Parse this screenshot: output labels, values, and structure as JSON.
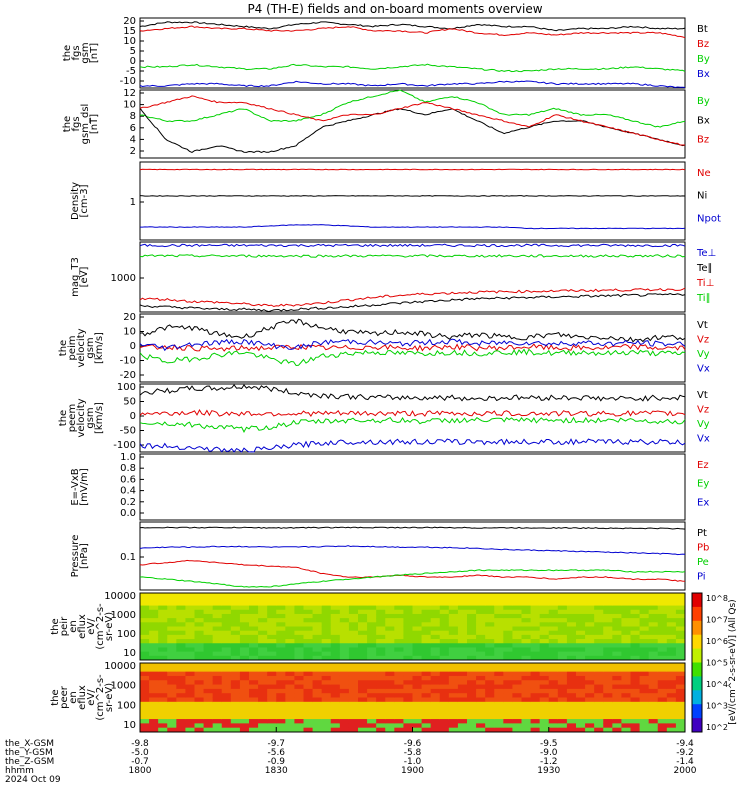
{
  "title": "P4 (TH-E) fields and on-board moments overview",
  "colors": {
    "black": "#000000",
    "red": "#e00000",
    "green": "#00d000",
    "blue": "#0000d0"
  },
  "chart_data": [
    {
      "type": "line",
      "id": "fgs",
      "ylabel": [
        "the",
        "fgs",
        "gsm",
        "[nT]"
      ],
      "yticks": [
        "20",
        "15",
        "10",
        "5",
        "0",
        "-5",
        "-10"
      ],
      "ylim": [
        -11,
        22
      ],
      "series": [
        {
          "name": "Bt",
          "color": "black",
          "values": [
            18,
            20,
            20,
            19,
            18,
            17,
            19,
            20,
            19,
            18,
            19,
            18,
            17,
            19,
            18,
            18,
            16,
            17,
            17,
            18,
            17,
            17
          ]
        },
        {
          "name": "Bz",
          "color": "red",
          "values": [
            16,
            17,
            18,
            17,
            17,
            16,
            16,
            17,
            18,
            16,
            16,
            15,
            17,
            15,
            14,
            15,
            14,
            15,
            15,
            15,
            15,
            13
          ]
        },
        {
          "name": "By",
          "color": "green",
          "values": [
            -1,
            -1,
            0,
            -1,
            -2,
            -2,
            0,
            -1,
            -1,
            -2,
            -1,
            0,
            -1,
            -2,
            -3,
            -3,
            -2,
            -2,
            -2,
            -1,
            -2,
            -3
          ]
        },
        {
          "name": "Bx",
          "color": "blue",
          "values": [
            -10,
            -10,
            -9,
            -9,
            -10,
            -10,
            -8,
            -9,
            -9,
            -10,
            -9,
            -10,
            -9,
            -9,
            -8,
            -8,
            -9,
            -9,
            -9,
            -9,
            -10,
            -11
          ]
        }
      ]
    },
    {
      "type": "line",
      "id": "fgs-dsl",
      "ylabel": [
        "the",
        "fgs",
        "gsm_dsl",
        "[nT]"
      ],
      "yticks": [
        "12",
        "10",
        "8",
        "6",
        "4",
        "2"
      ],
      "ylim": [
        1,
        12
      ],
      "series": [
        {
          "name": "By",
          "color": "green",
          "values": [
            8,
            7,
            7,
            8,
            9,
            7,
            7,
            8,
            10,
            11,
            12,
            10,
            11,
            10,
            8,
            8,
            9,
            8,
            8,
            7,
            6,
            7
          ]
        },
        {
          "name": "Bx",
          "color": "black",
          "values": [
            9,
            4,
            2,
            3,
            2,
            2,
            3,
            6,
            7,
            8,
            9,
            8,
            9,
            7,
            5,
            6,
            7,
            7,
            6,
            5,
            4,
            3
          ]
        },
        {
          "name": "Bz",
          "color": "red",
          "values": [
            9,
            10,
            11,
            10,
            10,
            9,
            8,
            7,
            8,
            8,
            9,
            10,
            9,
            8,
            7,
            6,
            8,
            7,
            6,
            5,
            4,
            3
          ]
        }
      ]
    },
    {
      "type": "line",
      "id": "density",
      "log": true,
      "ylabel": [
        "Density",
        "[cm-3]"
      ],
      "yticks": [
        "1"
      ],
      "ylim": [
        0.05,
        10
      ],
      "series": [
        {
          "name": "Ne",
          "color": "red",
          "values": [
            6,
            6,
            6,
            6,
            6,
            6,
            6,
            6,
            6,
            6,
            6,
            6,
            6,
            6,
            6,
            6,
            6,
            6,
            6,
            6,
            6,
            6
          ]
        },
        {
          "name": "Ni",
          "color": "black",
          "values": [
            1,
            1,
            1,
            1,
            1,
            1,
            1,
            1,
            1,
            1,
            1,
            1,
            1,
            1,
            1,
            1,
            1,
            1,
            1,
            1,
            1,
            1
          ]
        },
        {
          "name": "Npot",
          "color": "blue",
          "values": [
            0.12,
            0.12,
            0.12,
            0.12,
            0.12,
            0.13,
            0.14,
            0.14,
            0.13,
            0.12,
            0.12,
            0.12,
            0.12,
            0.12,
            0.12,
            0.11,
            0.11,
            0.11,
            0.11,
            0.11,
            0.11,
            0.11
          ]
        }
      ]
    },
    {
      "type": "line",
      "id": "temp",
      "log": true,
      "ylabel": [
        "mag_T3",
        "[eV]"
      ],
      "yticks": [
        "1000"
      ],
      "ylim": [
        1000,
        100000
      ],
      "series": [
        {
          "name": "Te⊥",
          "color": "blue",
          "values": [
            80000,
            80000,
            80000,
            80000,
            80000,
            80000,
            80000,
            80000,
            80000,
            80000,
            80000,
            80000,
            80000,
            80000,
            80000,
            80000,
            80000,
            80000,
            80000,
            80000,
            80000,
            80000
          ]
        },
        {
          "name": "Te∥",
          "color": "black",
          "values": [
            1500,
            1400,
            1300,
            1200,
            1200,
            1100,
            1200,
            1300,
            1400,
            1600,
            1800,
            2000,
            2200,
            2400,
            2500,
            2600,
            2700,
            2800,
            2900,
            3000,
            3100,
            3200
          ]
        },
        {
          "name": "Ti⊥",
          "color": "red",
          "values": [
            2400,
            2300,
            2000,
            1900,
            1700,
            1500,
            1600,
            1800,
            2200,
            2600,
            3000,
            3300,
            3500,
            3700,
            3800,
            3900,
            4000,
            4100,
            4200,
            4300,
            4400,
            4500
          ]
        },
        {
          "name": "Ti∥",
          "color": "green",
          "values": [
            40000,
            40000,
            40000,
            40000,
            40000,
            40000,
            40000,
            40000,
            40000,
            40000,
            40000,
            40000,
            40000,
            40000,
            40000,
            40000,
            40000,
            40000,
            40000,
            40000,
            40000,
            40000
          ]
        }
      ]
    },
    {
      "type": "line",
      "id": "peim",
      "ylabel": [
        "the",
        "peim",
        "velocity",
        "gsm",
        "[km/s]"
      ],
      "yticks": [
        "20",
        "10",
        "0",
        "-10",
        "-20"
      ],
      "ylim": [
        -25,
        25
      ],
      "series": [
        {
          "name": "Vt",
          "color": "black",
          "values": [
            10,
            15,
            15,
            10,
            8,
            15,
            20,
            15,
            12,
            10,
            12,
            10,
            8,
            10,
            8,
            8,
            10,
            8,
            8,
            6,
            8,
            8
          ]
        },
        {
          "name": "Vz",
          "color": "red",
          "values": [
            0,
            1,
            0,
            -1,
            0,
            0,
            1,
            0,
            0,
            1,
            0,
            0,
            1,
            0,
            0,
            1,
            0,
            0,
            0,
            1,
            0,
            0
          ]
        },
        {
          "name": "Vy",
          "color": "green",
          "values": [
            -5,
            -10,
            -8,
            -5,
            -3,
            -8,
            -12,
            -6,
            -4,
            -3,
            -4,
            -4,
            -3,
            -4,
            -3,
            -3,
            -4,
            -3,
            -4,
            -3,
            -4,
            -4
          ]
        },
        {
          "name": "Vx",
          "color": "blue",
          "values": [
            3,
            0,
            3,
            4,
            5,
            2,
            0,
            4,
            5,
            4,
            3,
            4,
            5,
            3,
            4,
            4,
            3,
            4,
            3,
            4,
            3,
            3
          ]
        }
      ]
    },
    {
      "type": "line",
      "id": "peem",
      "ylabel": [
        "the",
        "peem",
        "velocity",
        "gsm",
        "[km/s]"
      ],
      "yticks": [
        "100",
        "50",
        "0",
        "-50",
        "-100"
      ],
      "ylim": [
        -140,
        160
      ],
      "series": [
        {
          "name": "Vt",
          "color": "black",
          "values": [
            120,
            130,
            140,
            140,
            150,
            140,
            120,
            110,
            105,
            100,
            100,
            100,
            100,
            95,
            100,
            100,
            100,
            100,
            95,
            95,
            100,
            100
          ]
        },
        {
          "name": "Vz",
          "color": "red",
          "values": [
            30,
            30,
            35,
            30,
            30,
            30,
            30,
            30,
            30,
            30,
            30,
            30,
            30,
            30,
            30,
            30,
            30,
            30,
            30,
            30,
            30,
            30
          ]
        },
        {
          "name": "Vy",
          "color": "green",
          "values": [
            -10,
            -15,
            -20,
            -30,
            -40,
            -30,
            -10,
            -5,
            0,
            0,
            0,
            -5,
            0,
            0,
            0,
            0,
            0,
            0,
            0,
            0,
            -5,
            -5
          ]
        },
        {
          "name": "Vx",
          "color": "blue",
          "values": [
            -110,
            -115,
            -120,
            -130,
            -135,
            -125,
            -110,
            -100,
            -95,
            -95,
            -95,
            -95,
            -95,
            -95,
            -95,
            -95,
            -95,
            -95,
            -95,
            -95,
            -95,
            -100
          ]
        }
      ]
    },
    {
      "type": "line",
      "id": "efield",
      "ylabel": [
        "E=-VxB",
        "[mV/m]"
      ],
      "yticks": [
        "1.0",
        "0.8",
        "0.6",
        "0.4",
        "0.2",
        "0.0"
      ],
      "ylim": [
        0,
        1
      ],
      "series": [
        {
          "name": "Ez",
          "color": "red",
          "values": []
        },
        {
          "name": "Ey",
          "color": "green",
          "values": []
        },
        {
          "name": "Ex",
          "color": "blue",
          "values": []
        }
      ]
    },
    {
      "type": "line",
      "id": "pressure",
      "log": true,
      "ylabel": [
        "Pressure",
        "[nPa]"
      ],
      "yticks": [
        "0.1"
      ],
      "ylim": [
        0.07,
        1.2
      ],
      "series": [
        {
          "name": "Pt",
          "color": "black",
          "values": [
            0.95,
            0.95,
            0.95,
            0.95,
            0.95,
            0.94,
            0.94,
            0.95,
            0.95,
            0.95,
            0.95,
            0.95,
            0.95,
            0.94,
            0.94,
            0.94,
            0.94,
            0.93,
            0.93,
            0.92,
            0.92,
            0.9
          ]
        },
        {
          "name": "Pb",
          "color": "red",
          "values": [
            0.2,
            0.22,
            0.24,
            0.22,
            0.2,
            0.19,
            0.18,
            0.14,
            0.12,
            0.12,
            0.13,
            0.12,
            0.12,
            0.13,
            0.12,
            0.12,
            0.11,
            0.12,
            0.12,
            0.11,
            0.11,
            0.1
          ]
        },
        {
          "name": "Pe",
          "color": "green",
          "values": [
            0.12,
            0.11,
            0.1,
            0.09,
            0.08,
            0.08,
            0.09,
            0.1,
            0.11,
            0.12,
            0.13,
            0.14,
            0.15,
            0.16,
            0.16,
            0.16,
            0.16,
            0.16,
            0.16,
            0.15,
            0.15,
            0.15
          ]
        },
        {
          "name": "Pi",
          "color": "blue",
          "values": [
            0.4,
            0.42,
            0.42,
            0.43,
            0.43,
            0.42,
            0.42,
            0.43,
            0.44,
            0.43,
            0.42,
            0.42,
            0.41,
            0.4,
            0.38,
            0.37,
            0.36,
            0.35,
            0.34,
            0.33,
            0.32,
            0.31
          ]
        }
      ]
    },
    {
      "type": "heatmap",
      "id": "peir",
      "ylabel": [
        "the",
        "peir",
        "en",
        "eflux",
        "eV/",
        "(cm^2-s-",
        "sr-eV)"
      ],
      "yticks": [
        "10000",
        "1000",
        "100",
        "10"
      ]
    },
    {
      "type": "heatmap",
      "id": "peer",
      "ylabel": [
        "the",
        "peer",
        "en",
        "eflux",
        "eV/",
        "(cm^2-s-",
        "sr-eV)"
      ],
      "yticks": [
        "10000",
        "1000",
        "100",
        "10"
      ]
    }
  ],
  "colorbar": {
    "ticks": [
      "10^8",
      "10^7",
      "10^6",
      "10^5",
      "10^4",
      "10^3",
      "10^2"
    ],
    "label": "[eV/(cm^2-s-sr-eV)] (All Qs)"
  },
  "xaxis": {
    "rows": [
      {
        "label": "the_X-GSM",
        "values": [
          "-9.8",
          "-9.7",
          "-9.6",
          "-9.5",
          "-9.4"
        ]
      },
      {
        "label": "the_Y-GSM",
        "values": [
          "-5.0",
          "-5.6",
          "-5.8",
          "-9.0",
          "-9.2"
        ]
      },
      {
        "label": "the_Z-GSM",
        "values": [
          "-0.7",
          "-0.9",
          "-1.0",
          "-1.2",
          "-1.4"
        ]
      },
      {
        "label": "hhmm",
        "values": [
          "1800",
          "1830",
          "1900",
          "1930",
          "2000"
        ]
      }
    ],
    "date": "2024 Oct 09"
  }
}
